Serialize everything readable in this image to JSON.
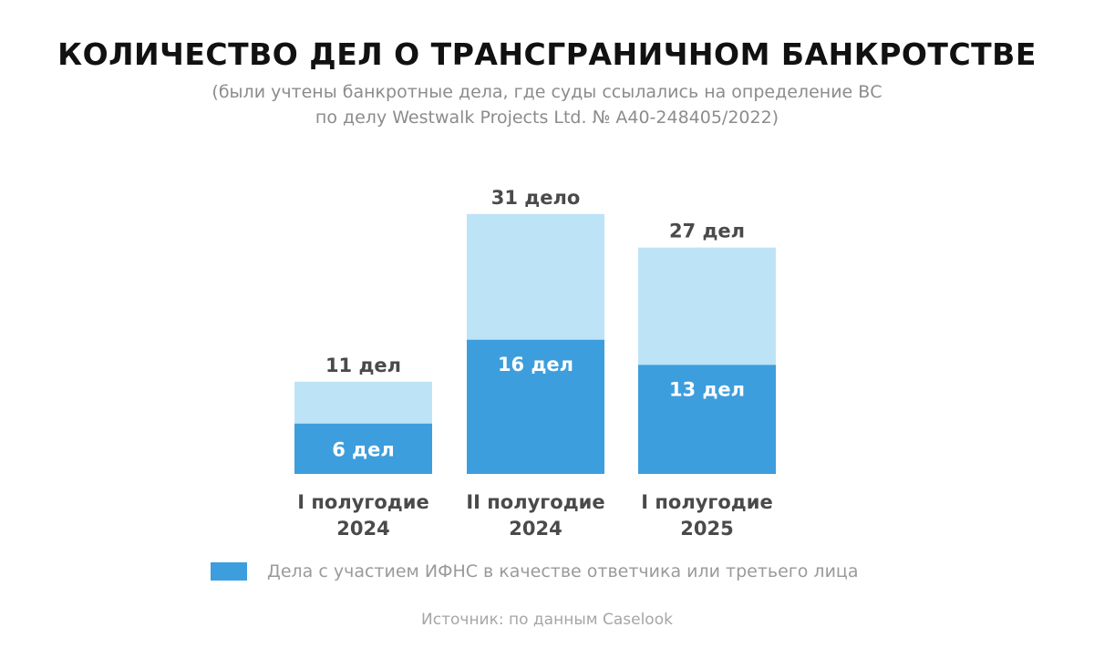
{
  "header": {
    "title": "КОЛИЧЕСТВО ДЕЛ О ТРАНСГРАНИЧНОМ БАНКРОТСТВЕ",
    "subtitle_line1": "(были учтены банкротные дела, где суды ссылались на определение ВС",
    "subtitle_line2": "по делу Westwalk Projects Ltd. № А40-248405/2022)"
  },
  "colors": {
    "light_bar": "#bde3f7",
    "dark_bar": "#3d9edd",
    "total_label": "#4a4a4a",
    "category_label": "#4a4a4a"
  },
  "chart_data": {
    "type": "bar",
    "stacked": true,
    "title": "КОЛИЧЕСТВО ДЕЛ О ТРАНСГРАНИЧНОМ БАНКРОТСТВЕ",
    "categories": [
      [
        "I полугодие",
        "2024"
      ],
      [
        "II полугодие",
        "2024"
      ],
      [
        "I полугодие",
        "2025"
      ]
    ],
    "totals": [
      11,
      31,
      27
    ],
    "total_labels": [
      "11 дел",
      "31 дело",
      "27 дел"
    ],
    "series": [
      {
        "name": "Дела с участием ИФНС в качестве ответчика или третьего лица",
        "values": [
          6,
          16,
          13
        ],
        "labels": [
          "6 дел",
          "16 дел",
          "13 дел"
        ]
      }
    ],
    "legend_position": "bottom",
    "grid": false
  },
  "legend": {
    "label": "Дела с участием ИФНС в качестве ответчика или третьего лица"
  },
  "source": {
    "text": "Источник: по данным Caselook"
  }
}
